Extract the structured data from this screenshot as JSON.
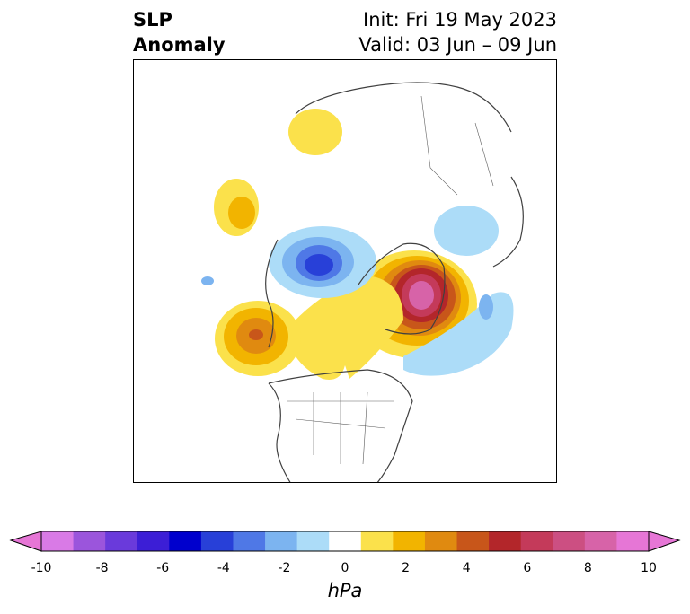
{
  "title": {
    "variable_line1": "SLP",
    "variable_line2": "Anomaly",
    "init": "Init: Fri 19 May 2023",
    "valid": "Valid: 03 Jun – 09 Jun"
  },
  "colorbar": {
    "units": "hPa",
    "tick_labels": [
      "-10",
      "-8",
      "-6",
      "-4",
      "-2",
      "0",
      "2",
      "4",
      "6",
      "8",
      "10"
    ],
    "bin_colors": [
      "#d97ae6",
      "#9b55dc",
      "#6a3adb",
      "#3c1ed6",
      "#0000cd",
      "#2840d8",
      "#4f78e6",
      "#7cb4f0",
      "#acdcf8",
      "#ffffff",
      "#fbe14b",
      "#f2b400",
      "#e08a10",
      "#c8561a",
      "#b3262a",
      "#c43a5a",
      "#cc4f82",
      "#d763a8",
      "#e676d6"
    ],
    "extend": "both"
  },
  "map": {
    "projection": "polar stereographic, North America / Arctic",
    "anomaly_features": [
      {
        "name": "strong positive anomaly over Greenland",
        "peak_hpa": 10
      },
      {
        "name": "positive anomaly over NE Pacific / British Columbia",
        "peak_hpa": 6
      },
      {
        "name": "positive anomaly over Canadian Prairies",
        "peak_hpa": 2
      },
      {
        "name": "positive anomaly over Alaska",
        "peak_hpa": 4
      },
      {
        "name": "positive anomaly over East Siberia",
        "peak_hpa": 2
      },
      {
        "name": "negative anomaly over Arctic Ocean / Laptev Sea",
        "peak_hpa": -6
      },
      {
        "name": "negative anomaly over North Atlantic",
        "peak_hpa": -2
      },
      {
        "name": "negative anomaly over Scandinavia",
        "peak_hpa": -2
      }
    ]
  }
}
